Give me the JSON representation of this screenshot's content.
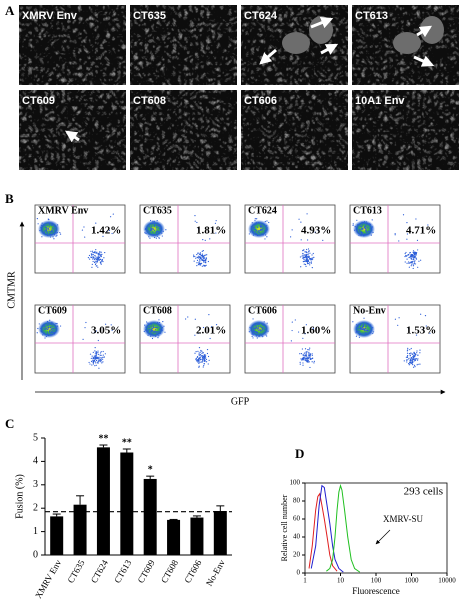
{
  "panel_labels": [
    "A",
    "B",
    "C",
    "D"
  ],
  "panel_a": {
    "images": [
      {
        "label": "XMRV Env"
      },
      {
        "label": "CT635"
      },
      {
        "label": "CT624"
      },
      {
        "label": "CT613"
      },
      {
        "label": "CT609"
      },
      {
        "label": "CT608"
      },
      {
        "label": "CT606"
      },
      {
        "label": "10A1 Env"
      }
    ]
  },
  "panel_b": {
    "ylabel": "CMTMR",
    "xlabel": "GFP",
    "plots": [
      {
        "label": "XMRV Env",
        "percent": "1.42%"
      },
      {
        "label": "CT635",
        "percent": "1.81%"
      },
      {
        "label": "CT624",
        "percent": "4.93%"
      },
      {
        "label": "CT613",
        "percent": "4.71%"
      },
      {
        "label": "CT609",
        "percent": "3.05%"
      },
      {
        "label": "CT608",
        "percent": "2.01%"
      },
      {
        "label": "CT606",
        "percent": "1.60%"
      },
      {
        "label": "No-Env",
        "percent": "1.53%"
      }
    ]
  },
  "chart_data": [
    {
      "type": "bar",
      "ylabel": "Fusion (%)",
      "categories": [
        "XMRV Env",
        "CT635",
        "CT624",
        "CT613",
        "CT609",
        "CT608",
        "CT606",
        "No-Env"
      ],
      "values": [
        1.65,
        2.15,
        4.6,
        4.38,
        3.25,
        1.5,
        1.6,
        1.88
      ],
      "errors": [
        0.1,
        0.38,
        0.1,
        0.15,
        0.12,
        0.02,
        0.07,
        0.22
      ],
      "significance": [
        null,
        null,
        "**",
        "**",
        "*",
        null,
        null,
        null
      ],
      "reference_line": 1.85,
      "color": "#000000",
      "ylim": [
        0,
        5
      ],
      "yticks": [
        0,
        1,
        2,
        3,
        4,
        5
      ]
    },
    {
      "type": "line",
      "title": "293 cells",
      "annotation": "XMRV-SU",
      "xlabel": "Fluorescence",
      "ylabel": "Relative cell number",
      "xlog": true,
      "xlim": [
        1,
        10000
      ],
      "xticks": [
        1,
        10,
        100,
        1000,
        10000
      ],
      "ylim": [
        0,
        100
      ],
      "yticks": [
        0,
        20,
        40,
        60,
        80,
        100
      ],
      "series": [
        {
          "color": "#e02020",
          "x": [
            1.3,
            1.6,
            2,
            2.3,
            2.6,
            3,
            3.5,
            4.2,
            5,
            6,
            8
          ],
          "values": [
            5,
            30,
            70,
            85,
            88,
            75,
            60,
            40,
            20,
            8,
            2
          ]
        },
        {
          "color": "#2020d0",
          "x": [
            1.5,
            2,
            2.5,
            3,
            3.5,
            4,
            5,
            6,
            7,
            9,
            12
          ],
          "values": [
            5,
            30,
            75,
            97,
            95,
            80,
            55,
            30,
            15,
            5,
            1
          ]
        },
        {
          "color": "#20c020",
          "x": [
            4,
            5,
            6,
            7,
            8,
            9,
            10,
            11,
            13,
            16,
            20,
            25,
            35
          ],
          "values": [
            2,
            5,
            15,
            40,
            70,
            90,
            97,
            92,
            70,
            40,
            15,
            5,
            1
          ]
        }
      ]
    }
  ]
}
